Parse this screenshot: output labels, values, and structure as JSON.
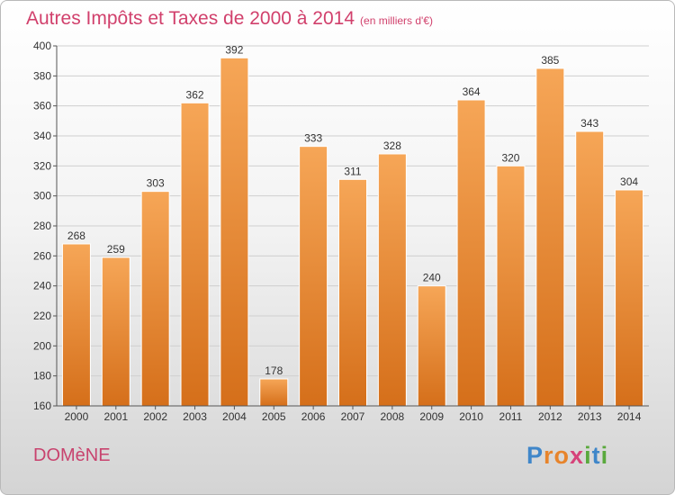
{
  "header": {
    "title": "Autres Impôts et Taxes de 2000 à 2014",
    "unit": "(en milliers d'€)"
  },
  "footer": {
    "commune": "DOMèNE",
    "logo_letters": [
      {
        "ch": "P",
        "color": "#3f86c9"
      },
      {
        "ch": "r",
        "color": "#e7842b"
      },
      {
        "ch": "o",
        "color": "#e7842b"
      },
      {
        "ch": "x",
        "color": "#d6437a"
      },
      {
        "ch": "i",
        "color": "#5aa93d"
      },
      {
        "ch": "t",
        "color": "#3f86c9"
      },
      {
        "ch": "i",
        "color": "#5aa93d"
      }
    ]
  },
  "chart_data": {
    "type": "bar",
    "categories": [
      "2000",
      "2001",
      "2002",
      "2003",
      "2004",
      "2005",
      "2006",
      "2007",
      "2008",
      "2009",
      "2010",
      "2011",
      "2012",
      "2013",
      "2014"
    ],
    "values": [
      268,
      259,
      303,
      362,
      392,
      178,
      333,
      311,
      328,
      240,
      364,
      320,
      385,
      343,
      304
    ],
    "ylim": [
      160,
      400
    ],
    "yticks": [
      160,
      180,
      200,
      220,
      240,
      260,
      280,
      300,
      320,
      340,
      360,
      380,
      400
    ],
    "grid": true,
    "bar_color_top": "#f6a657",
    "bar_color_bottom": "#d56f1a"
  }
}
